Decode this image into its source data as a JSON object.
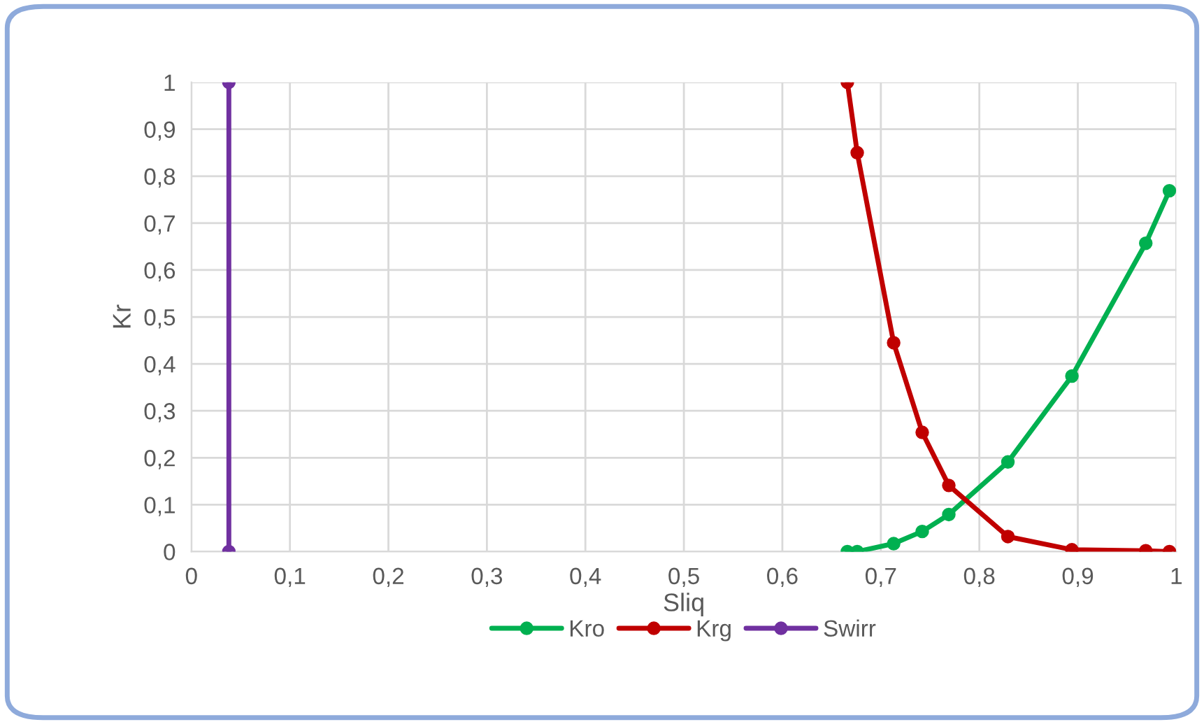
{
  "chart_data": {
    "type": "line",
    "xlabel": "Sliq",
    "ylabel": "Kr",
    "series": [
      {
        "name": "Kro",
        "color": "#00b050",
        "x": [
          0.666,
          0.676,
          0.713,
          0.742,
          0.769,
          0.829,
          0.894,
          0.969,
          0.993
        ],
        "values": [
          0.0,
          0.0,
          0.017,
          0.043,
          0.079,
          0.191,
          0.374,
          0.657,
          0.769
        ]
      },
      {
        "name": "Krg",
        "color": "#c00000",
        "x": [
          0.666,
          0.676,
          0.713,
          0.742,
          0.769,
          0.829,
          0.894,
          0.969,
          0.993
        ],
        "values": [
          1.0,
          0.85,
          0.445,
          0.254,
          0.141,
          0.032,
          0.004,
          0.002,
          0.0
        ]
      },
      {
        "name": "Swirr",
        "color": "#7030a0",
        "x": [
          0.038,
          0.038
        ],
        "values": [
          0,
          1
        ]
      }
    ],
    "xlim": [
      0,
      1
    ],
    "ylim": [
      0,
      1
    ],
    "xticks": [
      0,
      {
        "value": 0.1,
        "label": "0,1"
      },
      {
        "value": 0.2,
        "label": "0,2"
      },
      {
        "value": 0.3,
        "label": "0,3"
      },
      {
        "value": 0.4,
        "label": "0,4"
      },
      {
        "value": 0.5,
        "label": "0,5"
      },
      {
        "value": 0.6,
        "label": "0,6"
      },
      {
        "value": 0.7,
        "label": "0,7"
      },
      {
        "value": 0.8,
        "label": "0,8"
      },
      {
        "value": 0.9,
        "label": "0,9"
      },
      1
    ],
    "yticks": [
      0,
      {
        "value": 0.1,
        "label": "0,1"
      },
      {
        "value": 0.2,
        "label": "0,2"
      },
      {
        "value": 0.3,
        "label": "0,3"
      },
      {
        "value": 0.4,
        "label": "0,4"
      },
      {
        "value": 0.5,
        "label": "0,5"
      },
      {
        "value": 0.6,
        "label": "0,6"
      },
      {
        "value": 0.7,
        "label": "0,7"
      },
      {
        "value": 0.8,
        "label": "0,8"
      },
      {
        "value": 0.9,
        "label": "0,9"
      },
      1
    ],
    "grid": true,
    "legend": "bottom",
    "marker": "circle",
    "line_style": "solid"
  }
}
